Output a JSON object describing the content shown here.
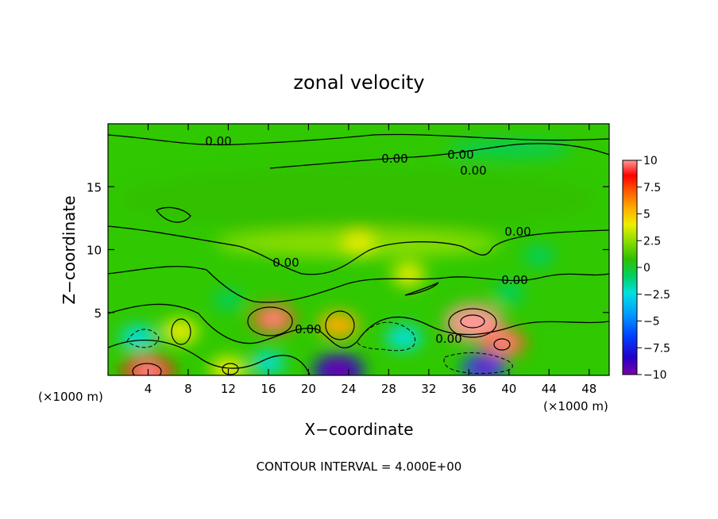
{
  "title": "zonal velocity",
  "footer": "CONTOUR INTERVAL = 4.000E+00",
  "chart_data": {
    "type": "heatmap",
    "title": "zonal velocity",
    "xlabel": "X−coordinate",
    "ylabel": "Z−coordinate",
    "xunit_left": "(×1000 m)",
    "xunit_right": "(×1000 m)",
    "xlim": [
      0,
      50
    ],
    "ylim": [
      0,
      20
    ],
    "xticks": [
      4,
      8,
      12,
      16,
      20,
      24,
      28,
      32,
      36,
      40,
      44,
      48
    ],
    "yticks": [
      5,
      10,
      15
    ],
    "colorbar": {
      "ticks": [
        "10",
        "7.5",
        "5",
        "2.5",
        "0",
        "−2.5",
        "−5",
        "−7.5",
        "−10"
      ],
      "vmin": -10,
      "vmax": 10,
      "colors": [
        "#7a00a6",
        "#2200c8",
        "#0040ff",
        "#0099ff",
        "#00e0e0",
        "#00d060",
        "#30c000",
        "#88dd00",
        "#eeee00",
        "#ffaa00",
        "#ff5500",
        "#ff0000",
        "#ff9999"
      ]
    },
    "contour_labels": [
      "0.00",
      "0.00",
      "0.00",
      "0.00",
      "0.00",
      "0.00",
      "0.00",
      "0.00",
      "0.00"
    ],
    "contour_interval": "4.000E+00",
    "features": [
      {
        "name": "positive-core-x36",
        "x": 36.5,
        "z": 4.2,
        "value": 10
      },
      {
        "name": "positive-x17",
        "x": 16.5,
        "z": 4.5,
        "value": 6
      },
      {
        "name": "positive-x23",
        "x": 23,
        "z": 4.0,
        "value": 5
      },
      {
        "name": "positive-x7",
        "x": 7.2,
        "z": 3.5,
        "value": 4
      },
      {
        "name": "positive-x4-base",
        "x": 4,
        "z": 0.3,
        "value": 8
      },
      {
        "name": "positive-x12-base",
        "x": 12,
        "z": 0.5,
        "value": 4
      },
      {
        "name": "positive-x39",
        "x": 39.5,
        "z": 2.6,
        "value": 6
      },
      {
        "name": "negative-x29",
        "x": 29.5,
        "z": 3.0,
        "value": -4
      },
      {
        "name": "negative-x37-base",
        "x": 37.5,
        "z": 0.6,
        "value": -6
      },
      {
        "name": "negative-x23-base",
        "x": 23,
        "z": 0.4,
        "value": -8
      },
      {
        "name": "negative-x3",
        "x": 3,
        "z": 3.0,
        "value": -4
      },
      {
        "name": "negative-x16-base",
        "x": 16,
        "z": 1.0,
        "value": -3
      },
      {
        "name": "negative-x12",
        "x": 12,
        "z": 6.0,
        "value": -2
      },
      {
        "name": "negative-x43",
        "x": 43,
        "z": 9.5,
        "value": -2.5
      },
      {
        "name": "negative-x40",
        "x": 40,
        "z": 6.5,
        "value": -2.5
      },
      {
        "name": "positive-upper-x25",
        "x": 25,
        "z": 10.5,
        "value": 2.5
      },
      {
        "name": "positive-upper-x30",
        "x": 30,
        "z": 8.0,
        "value": 3
      }
    ]
  }
}
